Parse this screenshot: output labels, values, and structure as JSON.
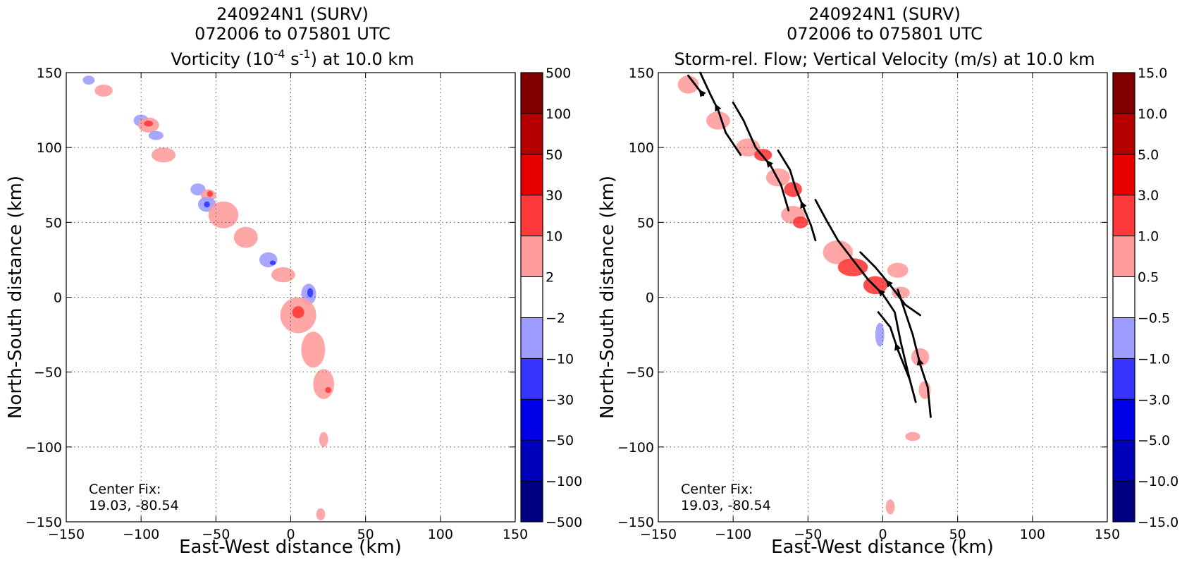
{
  "panels": [
    {
      "title_lines": [
        "240924N1 (SURV)",
        "072006 to 075801 UTC"
      ],
      "title_line3": {
        "pre": "Vorticity (10",
        "sup1": "-4",
        "mid": " s",
        "sup2": "-1",
        "post": ") at 10.0 km"
      },
      "xlabel": "East-West distance (km)",
      "ylabel": "North-South distance (km)",
      "annotation": [
        "Center Fix:",
        "19.03, -80.54"
      ],
      "colorbar": {
        "labels": [
          "500",
          "100",
          "50",
          "30",
          "10",
          "2",
          "−2",
          "−10",
          "−30",
          "−50",
          "−100",
          "−500"
        ],
        "colors": [
          "#800000",
          "#b50000",
          "#e80000",
          "#ff3a3a",
          "#ff9c9c",
          "#ffffff",
          "#9d9dff",
          "#3535ff",
          "#0000e8",
          "#0000b8",
          "#000080"
        ]
      }
    },
    {
      "title_lines": [
        "240924N1 (SURV)",
        "072006 to 075801 UTC",
        "Storm-rel. Flow; Vertical Velocity (m/s) at 10.0 km"
      ],
      "xlabel": "East-West distance (km)",
      "ylabel": "North-South distance (km)",
      "annotation": [
        "Center Fix:",
        "19.03, -80.54"
      ],
      "colorbar": {
        "labels": [
          "15.0",
          "10.0",
          "5.0",
          "3.0",
          "1.0",
          "0.5",
          "−0.5",
          "−1.0",
          "−3.0",
          "−5.0",
          "−10.0",
          "−15.0"
        ],
        "colors": [
          "#800000",
          "#b50000",
          "#e80000",
          "#ff3a3a",
          "#ff9c9c",
          "#ffffff",
          "#9d9dff",
          "#3535ff",
          "#0000e8",
          "#0000b8",
          "#000080"
        ]
      }
    }
  ],
  "chart_data": [
    {
      "type": "heatmap",
      "variable": "vorticity",
      "xlim": [
        -150,
        150
      ],
      "ylim": [
        -150,
        150
      ],
      "xticks": [
        -150,
        -100,
        -50,
        0,
        50,
        100,
        150
      ],
      "yticks": [
        -150,
        -100,
        -50,
        0,
        50,
        100,
        150
      ],
      "grid": true,
      "blobs": [
        {
          "x": -135,
          "y": 145,
          "rx": 4,
          "ry": 3,
          "color": "#9d9dff"
        },
        {
          "x": -125,
          "y": 138,
          "rx": 6,
          "ry": 4,
          "color": "#ff9c9c"
        },
        {
          "x": -100,
          "y": 118,
          "rx": 5,
          "ry": 4,
          "color": "#9d9dff"
        },
        {
          "x": -95,
          "y": 115,
          "rx": 7,
          "ry": 5,
          "color": "#ff9c9c"
        },
        {
          "x": -95,
          "y": 116,
          "rx": 3,
          "ry": 2,
          "color": "#ff3a3a"
        },
        {
          "x": -90,
          "y": 108,
          "rx": 5,
          "ry": 3,
          "color": "#9d9dff"
        },
        {
          "x": -85,
          "y": 95,
          "rx": 8,
          "ry": 5,
          "color": "#ff9c9c"
        },
        {
          "x": -62,
          "y": 72,
          "rx": 5,
          "ry": 4,
          "color": "#9d9dff"
        },
        {
          "x": -55,
          "y": 68,
          "rx": 5,
          "ry": 4,
          "color": "#ff9c9c"
        },
        {
          "x": -54,
          "y": 69,
          "rx": 2,
          "ry": 2,
          "color": "#ff3a3a"
        },
        {
          "x": -56,
          "y": 62,
          "rx": 6,
          "ry": 5,
          "color": "#9d9dff"
        },
        {
          "x": -56,
          "y": 62,
          "rx": 2,
          "ry": 2,
          "color": "#3535ff"
        },
        {
          "x": -45,
          "y": 55,
          "rx": 10,
          "ry": 9,
          "color": "#ff9c9c"
        },
        {
          "x": -30,
          "y": 40,
          "rx": 8,
          "ry": 7,
          "color": "#ff9c9c"
        },
        {
          "x": -15,
          "y": 25,
          "rx": 6,
          "ry": 5,
          "color": "#9d9dff"
        },
        {
          "x": -12,
          "y": 23,
          "rx": 2,
          "ry": 1.5,
          "color": "#3535ff"
        },
        {
          "x": -5,
          "y": 15,
          "rx": 8,
          "ry": 5,
          "color": "#ff9c9c"
        },
        {
          "x": 12,
          "y": 2,
          "rx": 5,
          "ry": 7,
          "color": "#9d9dff"
        },
        {
          "x": 13,
          "y": 3,
          "rx": 2,
          "ry": 3,
          "color": "#3535ff"
        },
        {
          "x": 5,
          "y": -12,
          "rx": 12,
          "ry": 12,
          "color": "#ff9c9c"
        },
        {
          "x": 5,
          "y": -10,
          "rx": 4,
          "ry": 4,
          "color": "#ff3a3a"
        },
        {
          "x": 15,
          "y": -35,
          "rx": 8,
          "ry": 12,
          "color": "#ff9c9c"
        },
        {
          "x": 22,
          "y": -58,
          "rx": 7,
          "ry": 10,
          "color": "#ff9c9c"
        },
        {
          "x": 25,
          "y": -62,
          "rx": 2,
          "ry": 2,
          "color": "#ff3a3a"
        },
        {
          "x": 22,
          "y": -95,
          "rx": 3,
          "ry": 5,
          "color": "#ff9c9c"
        },
        {
          "x": 20,
          "y": -145,
          "rx": 3,
          "ry": 4,
          "color": "#ff9c9c"
        }
      ]
    },
    {
      "type": "heatmap",
      "variable": "vertical_velocity",
      "xlim": [
        -150,
        150
      ],
      "ylim": [
        -150,
        150
      ],
      "xticks": [
        -150,
        -100,
        -50,
        0,
        50,
        100,
        150
      ],
      "yticks": [
        -150,
        -100,
        -50,
        0,
        50,
        100,
        150
      ],
      "grid": true,
      "blobs": [
        {
          "x": -130,
          "y": 142,
          "rx": 7,
          "ry": 6,
          "color": "#ff9c9c"
        },
        {
          "x": -110,
          "y": 118,
          "rx": 8,
          "ry": 6,
          "color": "#ff9c9c"
        },
        {
          "x": -90,
          "y": 100,
          "rx": 8,
          "ry": 6,
          "color": "#ff9c9c"
        },
        {
          "x": -80,
          "y": 95,
          "rx": 6,
          "ry": 4,
          "color": "#ff3a3a"
        },
        {
          "x": -70,
          "y": 80,
          "rx": 8,
          "ry": 6,
          "color": "#ff9c9c"
        },
        {
          "x": -60,
          "y": 72,
          "rx": 6,
          "ry": 5,
          "color": "#ff3a3a"
        },
        {
          "x": -60,
          "y": 55,
          "rx": 8,
          "ry": 6,
          "color": "#ff9c9c"
        },
        {
          "x": -55,
          "y": 50,
          "rx": 5,
          "ry": 4,
          "color": "#ff3a3a"
        },
        {
          "x": -30,
          "y": 30,
          "rx": 10,
          "ry": 8,
          "color": "#ff9c9c"
        },
        {
          "x": -20,
          "y": 20,
          "rx": 10,
          "ry": 6,
          "color": "#ff3a3a"
        },
        {
          "x": -5,
          "y": 8,
          "rx": 8,
          "ry": 6,
          "color": "#ff3a3a"
        },
        {
          "x": 10,
          "y": 18,
          "rx": 7,
          "ry": 5,
          "color": "#ff9c9c"
        },
        {
          "x": 12,
          "y": 3,
          "rx": 6,
          "ry": 4,
          "color": "#ff9c9c"
        },
        {
          "x": -2,
          "y": -25,
          "rx": 3,
          "ry": 8,
          "color": "#9d9dff"
        },
        {
          "x": 25,
          "y": -40,
          "rx": 6,
          "ry": 6,
          "color": "#ff9c9c"
        },
        {
          "x": 28,
          "y": -62,
          "rx": 4,
          "ry": 6,
          "color": "#ff9c9c"
        },
        {
          "x": 20,
          "y": -93,
          "rx": 5,
          "ry": 3,
          "color": "#ff9c9c"
        },
        {
          "x": 5,
          "y": -140,
          "rx": 3,
          "ry": 5,
          "color": "#ff9c9c"
        }
      ],
      "streamlines": [
        [
          [
            -122,
            150
          ],
          [
            -115,
            135
          ],
          [
            -110,
            125
          ],
          [
            -105,
            110
          ],
          [
            -95,
            95
          ]
        ],
        [
          [
            -130,
            148
          ],
          [
            -120,
            135
          ]
        ],
        [
          [
            -100,
            130
          ],
          [
            -93,
            118
          ],
          [
            -85,
            100
          ],
          [
            -75,
            88
          ],
          [
            -68,
            75
          ],
          [
            -63,
            58
          ]
        ],
        [
          [
            -70,
            98
          ],
          [
            -62,
            85
          ],
          [
            -58,
            72
          ],
          [
            -53,
            60
          ],
          [
            -48,
            48
          ],
          [
            -45,
            38
          ]
        ],
        [
          [
            -45,
            65
          ],
          [
            -38,
            52
          ],
          [
            -30,
            38
          ],
          [
            -20,
            25
          ],
          [
            -10,
            12
          ],
          [
            0,
            2
          ],
          [
            8,
            -10
          ],
          [
            12,
            -30
          ],
          [
            18,
            -55
          ],
          [
            22,
            -70
          ]
        ],
        [
          [
            -15,
            30
          ],
          [
            -5,
            20
          ],
          [
            5,
            8
          ],
          [
            15,
            -5
          ],
          [
            25,
            -12
          ]
        ],
        [
          [
            -3,
            -10
          ],
          [
            5,
            -20
          ],
          [
            10,
            -35
          ],
          [
            18,
            -55
          ]
        ],
        [
          [
            10,
            5
          ],
          [
            15,
            -10
          ],
          [
            20,
            -25
          ],
          [
            25,
            -45
          ],
          [
            30,
            -60
          ],
          [
            32,
            -80
          ]
        ]
      ]
    }
  ]
}
